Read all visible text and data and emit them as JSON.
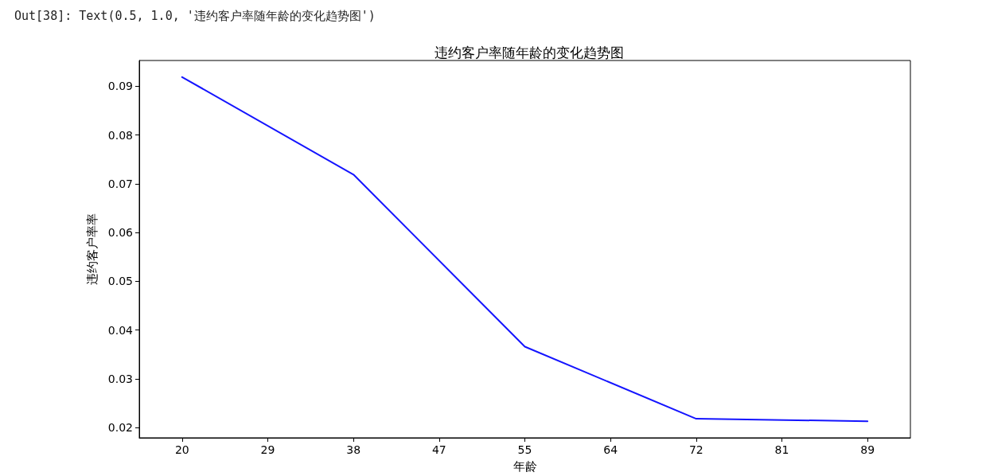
{
  "chart_data": {
    "type": "line",
    "title": "违约客户率随年龄的变化趋势图",
    "xlabel": "年龄",
    "ylabel": "违约客户率率",
    "annotations": [
      "Out[38]: Text(0.5, 1.0, '违约客户率随年龄的变化趋势图')"
    ],
    "categories": [
      "20",
      "29",
      "38",
      "47",
      "55",
      "64",
      "72",
      "81",
      "89"
    ],
    "series": [
      {
        "color": "#1414ff",
        "values": [
          0.0919,
          null,
          0.0719,
          null,
          0.0366,
          null,
          0.0218,
          null,
          0.0213
        ]
      }
    ],
    "ylim": [
      0.0179,
      0.0953
    ],
    "yticks": [
      0.02,
      0.03,
      0.04,
      0.05,
      0.06,
      0.07,
      0.08,
      0.09
    ],
    "grid": false,
    "marker": "none",
    "line_style": "solid"
  }
}
